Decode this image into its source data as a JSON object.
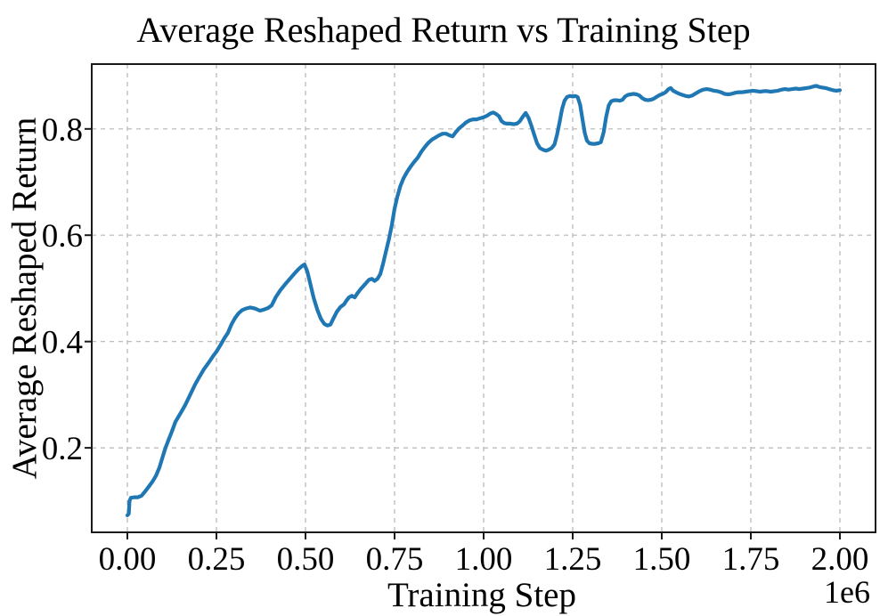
{
  "chart_data": {
    "type": "line",
    "title": "Average Reshaped Return vs Training Step",
    "xlabel": "Training Step",
    "ylabel": "Average Reshaped Return",
    "x_offset_label": "1e6",
    "x_unit_multiplier": 1000000,
    "xlim": [
      -0.1,
      2.1
    ],
    "ylim": [
      0.041,
      0.922
    ],
    "x_tick_values": [
      0.0,
      0.25,
      0.5,
      0.75,
      1.0,
      1.25,
      1.5,
      1.75,
      2.0
    ],
    "x_tick_labels": [
      "0.00",
      "0.25",
      "0.50",
      "0.75",
      "1.00",
      "1.25",
      "1.50",
      "1.75",
      "2.00"
    ],
    "y_tick_values": [
      0.2,
      0.4,
      0.6,
      0.8
    ],
    "y_tick_labels": [
      "0.2",
      "0.4",
      "0.6",
      "0.8"
    ],
    "grid": true,
    "grid_style": "dashed",
    "legend": "none",
    "line_color": "#1f77b4",
    "series": [
      {
        "name": "average-reshaped-return",
        "x": [
          0.0,
          0.004,
          0.006,
          0.01,
          0.02,
          0.03,
          0.04,
          0.05,
          0.06,
          0.07,
          0.08,
          0.09,
          0.1,
          0.107,
          0.115,
          0.125,
          0.135,
          0.15,
          0.162,
          0.175,
          0.19,
          0.2,
          0.215,
          0.228,
          0.24,
          0.25,
          0.262,
          0.272,
          0.282,
          0.292,
          0.302,
          0.312,
          0.322,
          0.333,
          0.345,
          0.358,
          0.372,
          0.383,
          0.395,
          0.405,
          0.417,
          0.43,
          0.442,
          0.455,
          0.468,
          0.48,
          0.49,
          0.497,
          0.505,
          0.514,
          0.523,
          0.533,
          0.543,
          0.553,
          0.562,
          0.57,
          0.578,
          0.588,
          0.598,
          0.608,
          0.615,
          0.622,
          0.63,
          0.638,
          0.645,
          0.654,
          0.662,
          0.67,
          0.678,
          0.686,
          0.694,
          0.702,
          0.71,
          0.718,
          0.726,
          0.734,
          0.742,
          0.75,
          0.758,
          0.766,
          0.775,
          0.785,
          0.795,
          0.805,
          0.815,
          0.825,
          0.835,
          0.845,
          0.855,
          0.865,
          0.875,
          0.885,
          0.895,
          0.904,
          0.913,
          0.922,
          0.931,
          0.94,
          0.95,
          0.96,
          0.97,
          0.98,
          0.99,
          1.0,
          1.01,
          1.019,
          1.027,
          1.035,
          1.043,
          1.05,
          1.058,
          1.066,
          1.075,
          1.084,
          1.093,
          1.101,
          1.11,
          1.118,
          1.126,
          1.134,
          1.142,
          1.15,
          1.158,
          1.166,
          1.175,
          1.183,
          1.191,
          1.199,
          1.206,
          1.213,
          1.22,
          1.227,
          1.234,
          1.242,
          1.25,
          1.257,
          1.264,
          1.271,
          1.278,
          1.284,
          1.29,
          1.297,
          1.305,
          1.313,
          1.321,
          1.329,
          1.337,
          1.344,
          1.351,
          1.358,
          1.366,
          1.374,
          1.382,
          1.39,
          1.397,
          1.405,
          1.413,
          1.421,
          1.429,
          1.437,
          1.445,
          1.453,
          1.461,
          1.47,
          1.478,
          1.487,
          1.495,
          1.503,
          1.511,
          1.519,
          1.525,
          1.532,
          1.54,
          1.549,
          1.558,
          1.567,
          1.576,
          1.586,
          1.596,
          1.606,
          1.616,
          1.626,
          1.636,
          1.646,
          1.656,
          1.666,
          1.676,
          1.686,
          1.696,
          1.706,
          1.716,
          1.726,
          1.736,
          1.746,
          1.756,
          1.766,
          1.776,
          1.786,
          1.796,
          1.806,
          1.816,
          1.826,
          1.836,
          1.846,
          1.856,
          1.866,
          1.876,
          1.886,
          1.896,
          1.906,
          1.916,
          1.926,
          1.934,
          1.942,
          1.95,
          1.96,
          1.97,
          1.98,
          1.99,
          2.0
        ],
        "y": [
          0.073,
          0.076,
          0.1,
          0.106,
          0.107,
          0.107,
          0.11,
          0.118,
          0.127,
          0.136,
          0.147,
          0.163,
          0.185,
          0.2,
          0.214,
          0.231,
          0.249,
          0.266,
          0.28,
          0.298,
          0.319,
          0.331,
          0.348,
          0.36,
          0.372,
          0.381,
          0.394,
          0.406,
          0.416,
          0.432,
          0.444,
          0.453,
          0.459,
          0.462,
          0.464,
          0.462,
          0.458,
          0.46,
          0.463,
          0.468,
          0.484,
          0.497,
          0.507,
          0.517,
          0.527,
          0.536,
          0.542,
          0.545,
          0.532,
          0.507,
          0.482,
          0.46,
          0.443,
          0.433,
          0.43,
          0.432,
          0.443,
          0.456,
          0.465,
          0.47,
          0.477,
          0.483,
          0.486,
          0.483,
          0.49,
          0.498,
          0.504,
          0.51,
          0.516,
          0.518,
          0.514,
          0.518,
          0.527,
          0.547,
          0.57,
          0.592,
          0.618,
          0.65,
          0.673,
          0.692,
          0.707,
          0.719,
          0.729,
          0.738,
          0.746,
          0.757,
          0.766,
          0.774,
          0.78,
          0.784,
          0.788,
          0.791,
          0.791,
          0.788,
          0.786,
          0.794,
          0.801,
          0.806,
          0.812,
          0.816,
          0.818,
          0.818,
          0.82,
          0.822,
          0.825,
          0.829,
          0.831,
          0.828,
          0.824,
          0.815,
          0.811,
          0.81,
          0.81,
          0.809,
          0.81,
          0.814,
          0.823,
          0.83,
          0.821,
          0.806,
          0.789,
          0.773,
          0.764,
          0.761,
          0.759,
          0.761,
          0.764,
          0.771,
          0.789,
          0.812,
          0.837,
          0.853,
          0.86,
          0.862,
          0.861,
          0.862,
          0.86,
          0.845,
          0.816,
          0.792,
          0.778,
          0.773,
          0.772,
          0.772,
          0.773,
          0.775,
          0.794,
          0.823,
          0.844,
          0.852,
          0.854,
          0.854,
          0.853,
          0.855,
          0.861,
          0.864,
          0.865,
          0.866,
          0.865,
          0.863,
          0.858,
          0.855,
          0.854,
          0.855,
          0.857,
          0.861,
          0.864,
          0.866,
          0.869,
          0.875,
          0.877,
          0.872,
          0.869,
          0.866,
          0.864,
          0.862,
          0.861,
          0.863,
          0.867,
          0.871,
          0.874,
          0.875,
          0.874,
          0.872,
          0.871,
          0.869,
          0.866,
          0.865,
          0.866,
          0.868,
          0.869,
          0.869,
          0.87,
          0.871,
          0.872,
          0.871,
          0.87,
          0.871,
          0.871,
          0.87,
          0.871,
          0.872,
          0.874,
          0.875,
          0.874,
          0.875,
          0.876,
          0.875,
          0.876,
          0.877,
          0.878,
          0.88,
          0.881,
          0.879,
          0.878,
          0.877,
          0.875,
          0.873,
          0.872,
          0.873
        ]
      }
    ]
  }
}
